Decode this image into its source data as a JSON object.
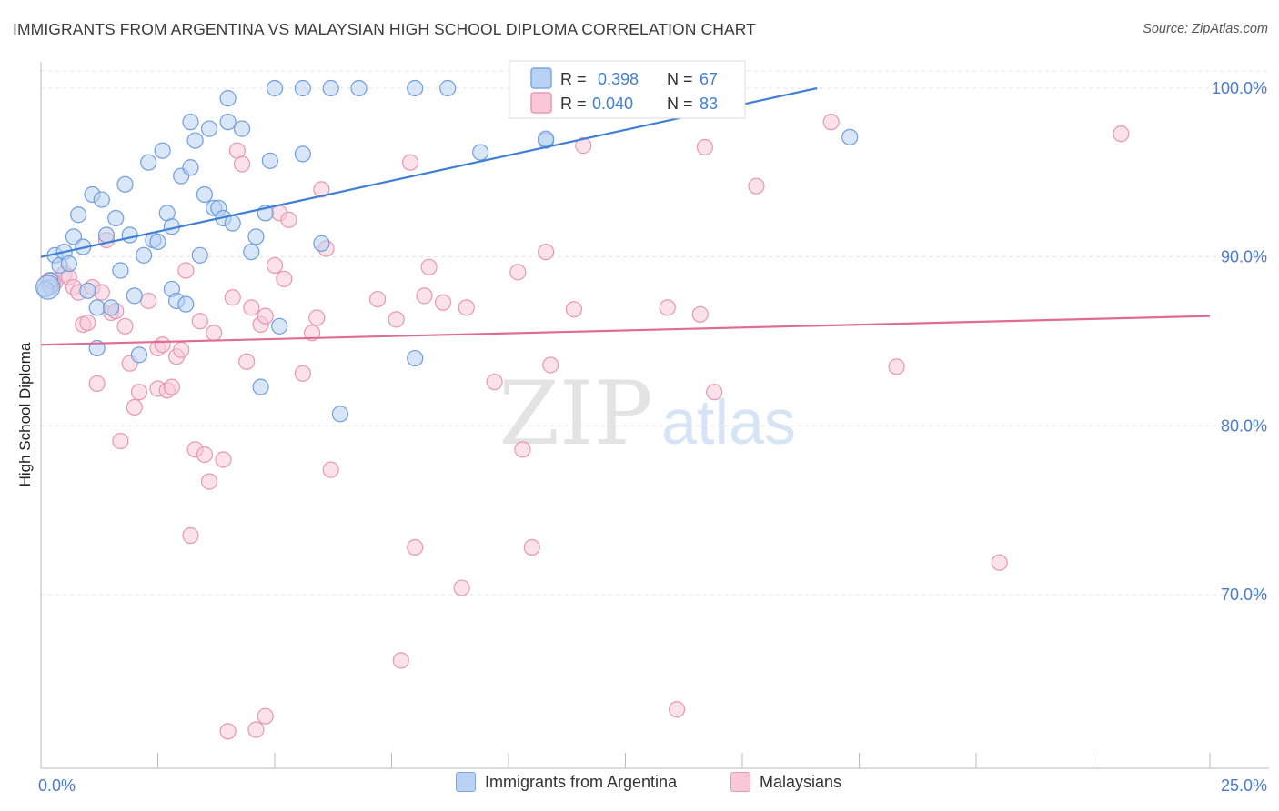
{
  "header": {
    "title": "IMMIGRANTS FROM ARGENTINA VS MALAYSIAN HIGH SCHOOL DIPLOMA CORRELATION CHART",
    "source": "Source: ZipAtlas.com"
  },
  "watermark": {
    "zip": "ZIP",
    "atlas": "atlas"
  },
  "legend_box": [
    {
      "r_label": "R =",
      "r_value": "0.398",
      "n_label": "N =",
      "n_value": "67"
    },
    {
      "r_label": "R =",
      "r_value": "0.040",
      "n_label": "N =",
      "n_value": "83"
    }
  ],
  "chart_data": {
    "type": "scatter",
    "title": "IMMIGRANTS FROM ARGENTINA VS MALAYSIAN HIGH SCHOOL DIPLOMA CORRELATION CHART",
    "xlabel": "",
    "ylabel": "High School Diploma",
    "xlim": [
      0,
      25
    ],
    "ylim": [
      61,
      101.5
    ],
    "x_tick_labels": [
      "0.0%",
      "25.0%"
    ],
    "y_ticks": [
      70,
      80,
      90,
      100
    ],
    "y_tick_labels": [
      "70.0%",
      "80.0%",
      "90.0%",
      "100.0%"
    ],
    "grid": true,
    "legend_position": "bottom-center",
    "colors": {
      "blue": "#3f7fd6",
      "pink": "#e06b94",
      "blue_fill": "#b9d2f3",
      "pink_fill": "#f8c8d7",
      "tick_label": "#4a7bd0"
    },
    "series": [
      {
        "name": "Immigrants from Argentina",
        "color": "#3f7fd6",
        "trend": {
          "x": [
            0,
            16.6
          ],
          "y": [
            90.0,
            100.0
          ]
        },
        "points": [
          [
            0.2,
            88.2
          ],
          [
            0.2,
            88.6
          ],
          [
            0.3,
            90.1
          ],
          [
            0.4,
            89.5
          ],
          [
            0.5,
            90.3
          ],
          [
            0.6,
            89.6
          ],
          [
            0.7,
            91.2
          ],
          [
            0.8,
            92.5
          ],
          [
            0.9,
            90.6
          ],
          [
            1.0,
            88.0
          ],
          [
            1.1,
            93.7
          ],
          [
            1.2,
            84.6
          ],
          [
            1.2,
            87.0
          ],
          [
            1.3,
            93.4
          ],
          [
            1.4,
            91.3
          ],
          [
            1.5,
            87.0
          ],
          [
            1.6,
            92.3
          ],
          [
            1.7,
            89.2
          ],
          [
            1.8,
            94.3
          ],
          [
            1.9,
            91.3
          ],
          [
            2.0,
            87.7
          ],
          [
            2.1,
            84.2
          ],
          [
            2.2,
            90.1
          ],
          [
            2.3,
            95.6
          ],
          [
            2.4,
            91.0
          ],
          [
            2.5,
            90.9
          ],
          [
            2.6,
            96.3
          ],
          [
            2.7,
            92.6
          ],
          [
            2.8,
            91.8
          ],
          [
            2.8,
            88.1
          ],
          [
            2.9,
            87.4
          ],
          [
            3.0,
            94.8
          ],
          [
            3.1,
            87.2
          ],
          [
            3.2,
            95.3
          ],
          [
            3.2,
            98.0
          ],
          [
            3.3,
            96.9
          ],
          [
            3.4,
            90.1
          ],
          [
            3.5,
            93.7
          ],
          [
            3.6,
            97.6
          ],
          [
            3.7,
            92.9
          ],
          [
            3.8,
            92.9
          ],
          [
            3.9,
            92.3
          ],
          [
            4.0,
            99.4
          ],
          [
            4.0,
            98.0
          ],
          [
            4.1,
            92.0
          ],
          [
            4.3,
            97.6
          ],
          [
            4.5,
            90.3
          ],
          [
            4.6,
            91.2
          ],
          [
            4.7,
            82.3
          ],
          [
            4.8,
            92.6
          ],
          [
            4.9,
            95.7
          ],
          [
            5.1,
            85.9
          ],
          [
            5.0,
            100.0
          ],
          [
            5.6,
            100.0
          ],
          [
            5.6,
            96.1
          ],
          [
            6.0,
            90.8
          ],
          [
            6.2,
            100.0
          ],
          [
            6.4,
            80.7
          ],
          [
            6.8,
            100.0
          ],
          [
            8.0,
            100.0
          ],
          [
            8.0,
            84.0
          ],
          [
            8.7,
            100.0
          ],
          [
            9.4,
            96.2
          ],
          [
            10.8,
            96.9
          ],
          [
            10.8,
            97.0
          ],
          [
            17.3,
            97.1
          ],
          [
            0.1,
            88.1
          ]
        ]
      },
      {
        "name": "Malaysians",
        "color": "#e06b94",
        "trend": {
          "x": [
            0,
            25
          ],
          "y": [
            84.8,
            86.5
          ]
        },
        "points": [
          [
            0.2,
            88.3
          ],
          [
            0.3,
            88.5
          ],
          [
            0.5,
            89.0
          ],
          [
            0.6,
            88.8
          ],
          [
            0.7,
            88.2
          ],
          [
            0.8,
            87.9
          ],
          [
            0.9,
            86.0
          ],
          [
            1.0,
            86.1
          ],
          [
            1.1,
            88.2
          ],
          [
            1.2,
            82.5
          ],
          [
            1.3,
            87.9
          ],
          [
            1.4,
            91.0
          ],
          [
            1.5,
            86.7
          ],
          [
            1.6,
            86.8
          ],
          [
            1.7,
            79.1
          ],
          [
            1.8,
            85.9
          ],
          [
            1.9,
            83.7
          ],
          [
            2.0,
            81.1
          ],
          [
            2.1,
            82.0
          ],
          [
            2.3,
            87.4
          ],
          [
            2.5,
            82.2
          ],
          [
            2.5,
            84.6
          ],
          [
            2.6,
            84.8
          ],
          [
            2.7,
            82.1
          ],
          [
            2.8,
            82.3
          ],
          [
            2.9,
            84.1
          ],
          [
            3.0,
            84.5
          ],
          [
            3.1,
            89.2
          ],
          [
            3.2,
            73.5
          ],
          [
            3.3,
            78.6
          ],
          [
            3.4,
            86.2
          ],
          [
            3.5,
            78.3
          ],
          [
            3.6,
            76.7
          ],
          [
            3.7,
            85.5
          ],
          [
            3.9,
            78.0
          ],
          [
            4.1,
            87.6
          ],
          [
            4.2,
            96.3
          ],
          [
            4.3,
            95.5
          ],
          [
            4.4,
            83.8
          ],
          [
            4.5,
            87.0
          ],
          [
            4.6,
            62.0
          ],
          [
            4.7,
            86.0
          ],
          [
            4.8,
            86.5
          ],
          [
            5.0,
            89.5
          ],
          [
            5.1,
            92.6
          ],
          [
            5.2,
            88.7
          ],
          [
            5.3,
            92.2
          ],
          [
            5.6,
            83.1
          ],
          [
            5.8,
            85.5
          ],
          [
            5.9,
            86.4
          ],
          [
            6.0,
            94.0
          ],
          [
            6.1,
            90.5
          ],
          [
            6.2,
            77.4
          ],
          [
            7.2,
            87.5
          ],
          [
            7.6,
            86.3
          ],
          [
            7.7,
            66.1
          ],
          [
            7.9,
            95.6
          ],
          [
            8.0,
            72.8
          ],
          [
            8.2,
            87.7
          ],
          [
            8.3,
            89.4
          ],
          [
            8.6,
            87.3
          ],
          [
            9.0,
            70.4
          ],
          [
            9.1,
            87.0
          ],
          [
            9.7,
            82.6
          ],
          [
            10.2,
            89.1
          ],
          [
            10.3,
            78.6
          ],
          [
            10.5,
            72.8
          ],
          [
            10.8,
            90.3
          ],
          [
            10.9,
            83.6
          ],
          [
            11.4,
            86.9
          ],
          [
            11.6,
            96.6
          ],
          [
            13.4,
            87.0
          ],
          [
            13.6,
            63.2
          ],
          [
            14.1,
            86.6
          ],
          [
            14.2,
            96.5
          ],
          [
            14.4,
            82.0
          ],
          [
            15.3,
            94.2
          ],
          [
            16.9,
            98.0
          ],
          [
            18.3,
            83.5
          ],
          [
            20.5,
            71.9
          ],
          [
            23.1,
            97.3
          ],
          [
            4.0,
            61.9
          ],
          [
            4.8,
            62.8
          ]
        ]
      }
    ]
  }
}
